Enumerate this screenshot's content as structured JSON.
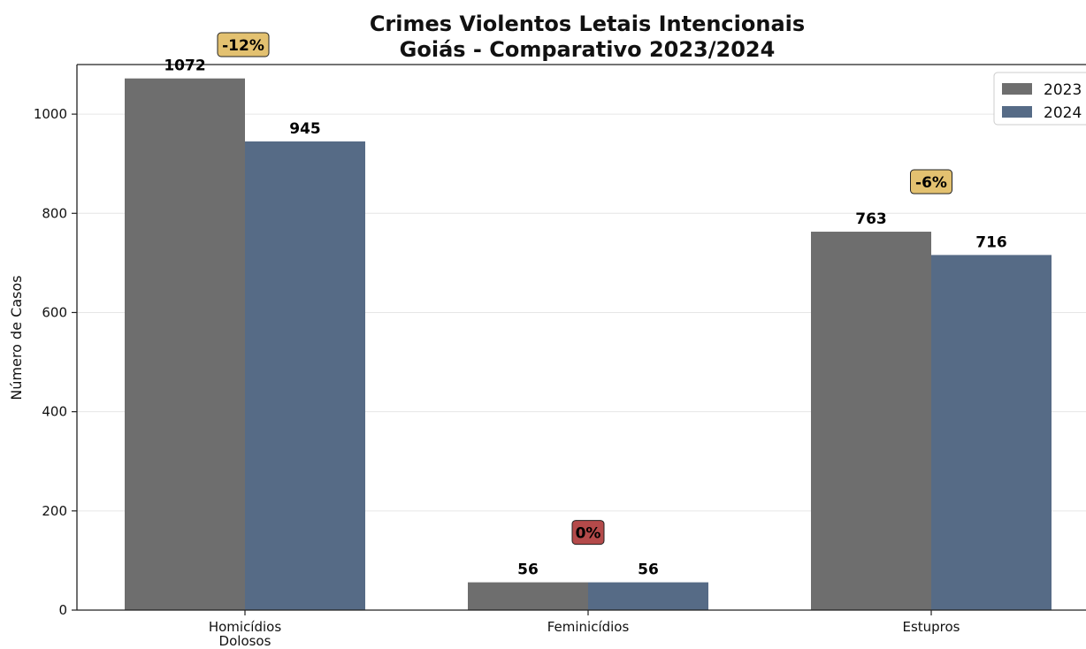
{
  "chart_data": {
    "type": "bar",
    "title_lines": [
      "Crimes Violentos Letais Intencionais",
      "Goiás - Comparativo 2023/2024"
    ],
    "ylabel": "Número de Casos",
    "xlabel": "",
    "categories": [
      [
        "Homicídios",
        "Dolosos"
      ],
      [
        "Feminicídios"
      ],
      [
        "Estupros"
      ]
    ],
    "series": [
      {
        "name": "2023",
        "color": "#6e6e6e",
        "values": [
          1072,
          56,
          763
        ]
      },
      {
        "name": "2024",
        "color": "#566b86",
        "values": [
          945,
          56,
          716
        ]
      }
    ],
    "changes": [
      {
        "label": "-12%",
        "color": "#e3c170"
      },
      {
        "label": "0%",
        "color": "#b44a4a"
      },
      {
        "label": "-6%",
        "color": "#e3c170"
      }
    ],
    "ylim": [
      0,
      1100
    ],
    "yticks": [
      0,
      200,
      400,
      600,
      800,
      1000
    ],
    "grid": true,
    "legend_position": "top-right"
  }
}
